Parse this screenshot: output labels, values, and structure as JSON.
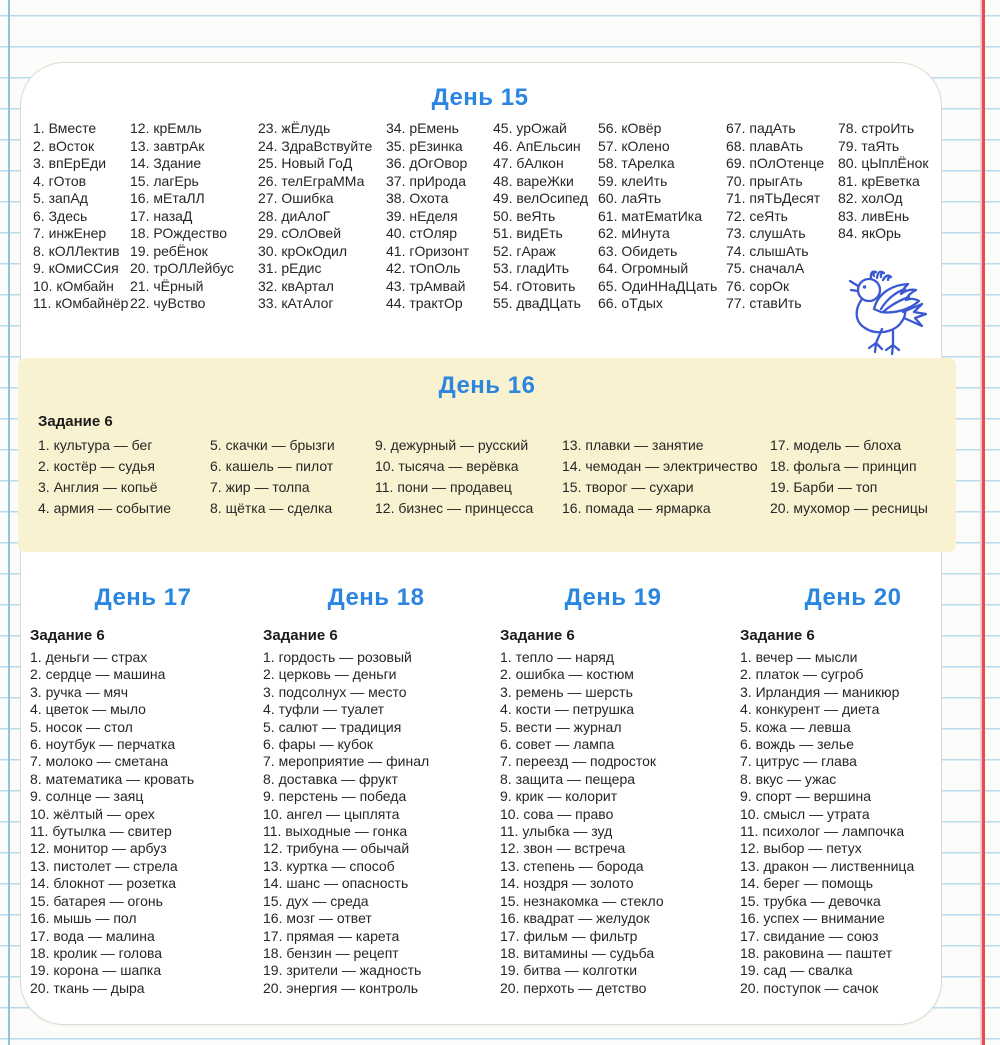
{
  "colors": {
    "accent_blue": "#2b86df",
    "band_yellow": "#f9f2d1",
    "ink": "#262626",
    "bird_blue": "#3a58d2",
    "rule_blue": "#b9dcec",
    "margin_red": "#e84a55"
  },
  "icons": {
    "bird": "bird-doodle"
  },
  "pair_separator": "—",
  "day15": {
    "title": "День 15",
    "columns": [
      [
        {
          "n": "1.",
          "w": "Вместе"
        },
        {
          "n": "2.",
          "w": "вОсток"
        },
        {
          "n": "3.",
          "w": "впЕрЕди"
        },
        {
          "n": "4.",
          "w": "гОтов"
        },
        {
          "n": "5.",
          "w": "запАд"
        },
        {
          "n": "6.",
          "w": "Здесь"
        },
        {
          "n": "7.",
          "w": "инжЕнер"
        },
        {
          "n": "8.",
          "w": "кОЛЛектив"
        },
        {
          "n": "9.",
          "w": "кОмиССия"
        },
        {
          "n": "10.",
          "w": "кОмбайн"
        },
        {
          "n": "11.",
          "w": "кОмбайнёр"
        }
      ],
      [
        {
          "n": "12.",
          "w": "крЕмль"
        },
        {
          "n": "13.",
          "w": "завтрАк"
        },
        {
          "n": "14.",
          "w": "Здание"
        },
        {
          "n": "15.",
          "w": "лагЕрь"
        },
        {
          "n": "16.",
          "w": "мЕтаЛЛ"
        },
        {
          "n": "17.",
          "w": "назаД"
        },
        {
          "n": "18.",
          "w": "РОждество"
        },
        {
          "n": "19.",
          "w": "ребЁнок"
        },
        {
          "n": "20.",
          "w": "трОЛЛейбус"
        },
        {
          "n": "21.",
          "w": "чЁрный"
        },
        {
          "n": "22.",
          "w": "чуВство"
        }
      ],
      [
        {
          "n": "23.",
          "w": "жЁлудь"
        },
        {
          "n": "24.",
          "w": "ЗдраВствуйте"
        },
        {
          "n": "25.",
          "w": "Новый ГоД"
        },
        {
          "n": "26.",
          "w": "телЕграММа"
        },
        {
          "n": "27.",
          "w": "Ошибка"
        },
        {
          "n": "28.",
          "w": "диАлоГ"
        },
        {
          "n": "29.",
          "w": "сОлОвей"
        },
        {
          "n": "30.",
          "w": "крОкОдил"
        },
        {
          "n": "31.",
          "w": "рЕдис"
        },
        {
          "n": "32.",
          "w": "квАртал"
        },
        {
          "n": "33.",
          "w": "кАтАлог"
        }
      ],
      [
        {
          "n": "34.",
          "w": "рЕмень"
        },
        {
          "n": "35.",
          "w": "рЕзинка"
        },
        {
          "n": "36.",
          "w": "дОгОвор"
        },
        {
          "n": "37.",
          "w": "прИрода"
        },
        {
          "n": "38.",
          "w": "Охота"
        },
        {
          "n": "39.",
          "w": "нЕделя"
        },
        {
          "n": "40.",
          "w": "стОляр"
        },
        {
          "n": "41.",
          "w": "гОризонт"
        },
        {
          "n": "42.",
          "w": "тОпОль"
        },
        {
          "n": "43.",
          "w": "трАмвай"
        },
        {
          "n": "44.",
          "w": "трактОр"
        }
      ],
      [
        {
          "n": "45.",
          "w": "урОжай"
        },
        {
          "n": "46.",
          "w": "АпЕльсин"
        },
        {
          "n": "47.",
          "w": "бАлкон"
        },
        {
          "n": "48.",
          "w": "вареЖки"
        },
        {
          "n": "49.",
          "w": "велОсипед"
        },
        {
          "n": "50.",
          "w": "веЯть"
        },
        {
          "n": "51.",
          "w": "видЕть"
        },
        {
          "n": "52.",
          "w": "гАраж"
        },
        {
          "n": "53.",
          "w": "гладИть"
        },
        {
          "n": "54.",
          "w": "гОтовить"
        },
        {
          "n": "55.",
          "w": "дваДЦать"
        }
      ],
      [
        {
          "n": "56.",
          "w": "кОвёр"
        },
        {
          "n": "57.",
          "w": "кОлено"
        },
        {
          "n": "58.",
          "w": "тАрелка"
        },
        {
          "n": "59.",
          "w": "клеИть"
        },
        {
          "n": "60.",
          "w": "лаЯть"
        },
        {
          "n": "61.",
          "w": "матЕматИка"
        },
        {
          "n": "62.",
          "w": "мИнута"
        },
        {
          "n": "63.",
          "w": "Обидеть"
        },
        {
          "n": "64.",
          "w": "Огромный"
        },
        {
          "n": "65.",
          "w": "ОдиННаДЦать"
        },
        {
          "n": "66.",
          "w": "оТдых"
        }
      ],
      [
        {
          "n": "67.",
          "w": "падАть"
        },
        {
          "n": "68.",
          "w": "плавАть"
        },
        {
          "n": "69.",
          "w": "пОлОтенце"
        },
        {
          "n": "70.",
          "w": "прыгАть"
        },
        {
          "n": "71.",
          "w": "пяТЬДесят"
        },
        {
          "n": "72.",
          "w": "сеЯть"
        },
        {
          "n": "73.",
          "w": "слушАть"
        },
        {
          "n": "74.",
          "w": "слышАть"
        },
        {
          "n": "75.",
          "w": "сначалА"
        },
        {
          "n": "76.",
          "w": "сорОк"
        },
        {
          "n": "77.",
          "w": "ставИть"
        }
      ],
      [
        {
          "n": "78.",
          "w": "строИть"
        },
        {
          "n": "79.",
          "w": "таЯть"
        },
        {
          "n": "80.",
          "w": "цЫплЁнок"
        },
        {
          "n": "81.",
          "w": "крЕветка"
        },
        {
          "n": "82.",
          "w": "холОд"
        },
        {
          "n": "83.",
          "w": "ливЕнь"
        },
        {
          "n": "84.",
          "w": "якОрь"
        }
      ]
    ]
  },
  "day16": {
    "title": "День 16",
    "task_label": "Задание 6",
    "columns": [
      [
        {
          "n": "1.",
          "a": "культура",
          "b": "бег"
        },
        {
          "n": "2.",
          "a": "костёр",
          "b": "судья"
        },
        {
          "n": "3.",
          "a": "Англия",
          "b": "копьё"
        },
        {
          "n": "4.",
          "a": "армия",
          "b": "событие"
        }
      ],
      [
        {
          "n": "5.",
          "a": "скачки",
          "b": "брызги"
        },
        {
          "n": "6.",
          "a": "кашель",
          "b": "пилот"
        },
        {
          "n": "7.",
          "a": "жир",
          "b": "толпа"
        },
        {
          "n": "8.",
          "a": "щётка",
          "b": "сделка"
        }
      ],
      [
        {
          "n": "9.",
          "a": "дежурный",
          "b": "русский"
        },
        {
          "n": "10.",
          "a": "тысяча",
          "b": "верёвка"
        },
        {
          "n": "11.",
          "a": "пони",
          "b": "продавец"
        },
        {
          "n": "12.",
          "a": "бизнес",
          "b": "принцесса"
        }
      ],
      [
        {
          "n": "13.",
          "a": "плавки",
          "b": "занятие"
        },
        {
          "n": "14.",
          "a": "чемодан",
          "b": "электричество"
        },
        {
          "n": "15.",
          "a": "творог",
          "b": "сухари"
        },
        {
          "n": "16.",
          "a": "помада",
          "b": "ярмарка"
        }
      ],
      [
        {
          "n": "17.",
          "a": "модель",
          "b": "блоха"
        },
        {
          "n": "18.",
          "a": "фольга",
          "b": "принцип"
        },
        {
          "n": "19.",
          "a": "Барби",
          "b": "топ"
        },
        {
          "n": "20.",
          "a": "мухомор",
          "b": "ресницы"
        }
      ]
    ]
  },
  "day17": {
    "title": "День 17",
    "task_label": "Задание 6",
    "pairs": [
      {
        "n": "1.",
        "a": "деньги",
        "b": "страх"
      },
      {
        "n": "2.",
        "a": "сердце",
        "b": "машина"
      },
      {
        "n": "3.",
        "a": "ручка",
        "b": "мяч"
      },
      {
        "n": "4.",
        "a": "цветок",
        "b": "мыло"
      },
      {
        "n": "5.",
        "a": "носок",
        "b": "стол"
      },
      {
        "n": "6.",
        "a": "ноутбук",
        "b": "перчатка"
      },
      {
        "n": "7.",
        "a": "молоко",
        "b": "сметана"
      },
      {
        "n": "8.",
        "a": "математика",
        "b": "кровать"
      },
      {
        "n": "9.",
        "a": "солнце",
        "b": "заяц"
      },
      {
        "n": "10.",
        "a": "жёлтый",
        "b": "орех"
      },
      {
        "n": "11.",
        "a": "бутылка",
        "b": "свитер"
      },
      {
        "n": "12.",
        "a": "монитор",
        "b": "арбуз"
      },
      {
        "n": "13.",
        "a": "пистолет",
        "b": "стрела"
      },
      {
        "n": "14.",
        "a": "блокнот",
        "b": "розетка"
      },
      {
        "n": "15.",
        "a": "батарея",
        "b": "огонь"
      },
      {
        "n": "16.",
        "a": "мышь",
        "b": "пол"
      },
      {
        "n": "17.",
        "a": "вода",
        "b": "малина"
      },
      {
        "n": "18.",
        "a": "кролик",
        "b": "голова"
      },
      {
        "n": "19.",
        "a": "корона",
        "b": "шапка"
      },
      {
        "n": "20.",
        "a": "ткань",
        "b": "дыра"
      }
    ]
  },
  "day18": {
    "title": "День 18",
    "task_label": "Задание 6",
    "pairs": [
      {
        "n": "1.",
        "a": "гордость",
        "b": "розовый"
      },
      {
        "n": "2.",
        "a": "церковь",
        "b": "деньги"
      },
      {
        "n": "3.",
        "a": "подсолнух",
        "b": "место"
      },
      {
        "n": "4.",
        "a": "туфли",
        "b": "туалет"
      },
      {
        "n": "5.",
        "a": "салют",
        "b": "традиция"
      },
      {
        "n": "6.",
        "a": "фары",
        "b": "кубок"
      },
      {
        "n": "7.",
        "a": "мероприятие",
        "b": "финал"
      },
      {
        "n": "8.",
        "a": "доставка",
        "b": "фрукт"
      },
      {
        "n": "9.",
        "a": "перстень",
        "b": "победа"
      },
      {
        "n": "10.",
        "a": "ангел",
        "b": "цыплята"
      },
      {
        "n": "11.",
        "a": "выходные",
        "b": "гонка"
      },
      {
        "n": "12.",
        "a": "трибуна",
        "b": "обычай"
      },
      {
        "n": "13.",
        "a": "куртка",
        "b": "способ"
      },
      {
        "n": "14.",
        "a": "шанс",
        "b": "опасность"
      },
      {
        "n": "15.",
        "a": "дух",
        "b": "среда"
      },
      {
        "n": "16.",
        "a": "мозг",
        "b": "ответ"
      },
      {
        "n": "17.",
        "a": "прямая",
        "b": "карета"
      },
      {
        "n": "18.",
        "a": "бензин",
        "b": "рецепт"
      },
      {
        "n": "19.",
        "a": "зрители",
        "b": "жадность"
      },
      {
        "n": "20.",
        "a": "энергия",
        "b": "контроль"
      }
    ]
  },
  "day19": {
    "title": "День 19",
    "task_label": "Задание 6",
    "pairs": [
      {
        "n": "1.",
        "a": "тепло",
        "b": "наряд"
      },
      {
        "n": "2.",
        "a": "ошибка",
        "b": "костюм"
      },
      {
        "n": "3.",
        "a": "ремень",
        "b": "шерсть"
      },
      {
        "n": "4.",
        "a": "кости",
        "b": "петрушка"
      },
      {
        "n": "5.",
        "a": "вести",
        "b": "журнал"
      },
      {
        "n": "6.",
        "a": "совет",
        "b": "лампа"
      },
      {
        "n": "7.",
        "a": "переезд",
        "b": "подросток"
      },
      {
        "n": "8.",
        "a": "защита",
        "b": "пещера"
      },
      {
        "n": "9.",
        "a": "крик",
        "b": "колорит"
      },
      {
        "n": "10.",
        "a": "сова",
        "b": "право"
      },
      {
        "n": "11.",
        "a": "улыбка",
        "b": "зуд"
      },
      {
        "n": "12.",
        "a": "звон",
        "b": "встреча"
      },
      {
        "n": "13.",
        "a": "степень",
        "b": "борода"
      },
      {
        "n": "14.",
        "a": "ноздря",
        "b": "золото"
      },
      {
        "n": "15.",
        "a": "незнакомка",
        "b": "стекло"
      },
      {
        "n": "16.",
        "a": "квадрат",
        "b": "желудок"
      },
      {
        "n": "17.",
        "a": "фильм",
        "b": "фильтр"
      },
      {
        "n": "18.",
        "a": "витамины",
        "b": "судьба"
      },
      {
        "n": "19.",
        "a": "битва",
        "b": "колготки"
      },
      {
        "n": "20.",
        "a": "перхоть",
        "b": "детство"
      }
    ]
  },
  "day20": {
    "title": "День 20",
    "task_label": "Задание 6",
    "pairs": [
      {
        "n": "1.",
        "a": "вечер",
        "b": "мысли"
      },
      {
        "n": "2.",
        "a": "платок",
        "b": "сугроб"
      },
      {
        "n": "3.",
        "a": "Ирландия",
        "b": "маникюр"
      },
      {
        "n": "4.",
        "a": "конкурент",
        "b": "диета"
      },
      {
        "n": "5.",
        "a": "кожа",
        "b": "левша"
      },
      {
        "n": "6.",
        "a": "вождь",
        "b": "зелье"
      },
      {
        "n": "7.",
        "a": "цитрус",
        "b": "глава"
      },
      {
        "n": "8.",
        "a": "вкус",
        "b": "ужас"
      },
      {
        "n": "9.",
        "a": "спорт",
        "b": "вершина"
      },
      {
        "n": "10.",
        "a": "смысл",
        "b": "утрата"
      },
      {
        "n": "11.",
        "a": "психолог",
        "b": "лампочка"
      },
      {
        "n": "12.",
        "a": "выбор",
        "b": "петух"
      },
      {
        "n": "13.",
        "a": "дракон",
        "b": "лиственница"
      },
      {
        "n": "14.",
        "a": "берег",
        "b": "помощь"
      },
      {
        "n": "15.",
        "a": "трубка",
        "b": "девочка"
      },
      {
        "n": "16.",
        "a": "успех",
        "b": "внимание"
      },
      {
        "n": "17.",
        "a": "свидание",
        "b": "союз"
      },
      {
        "n": "18.",
        "a": "раковина",
        "b": "паштет"
      },
      {
        "n": "19.",
        "a": "сад",
        "b": "свалка"
      },
      {
        "n": "20.",
        "a": "поступок",
        "b": "сачок"
      }
    ]
  }
}
